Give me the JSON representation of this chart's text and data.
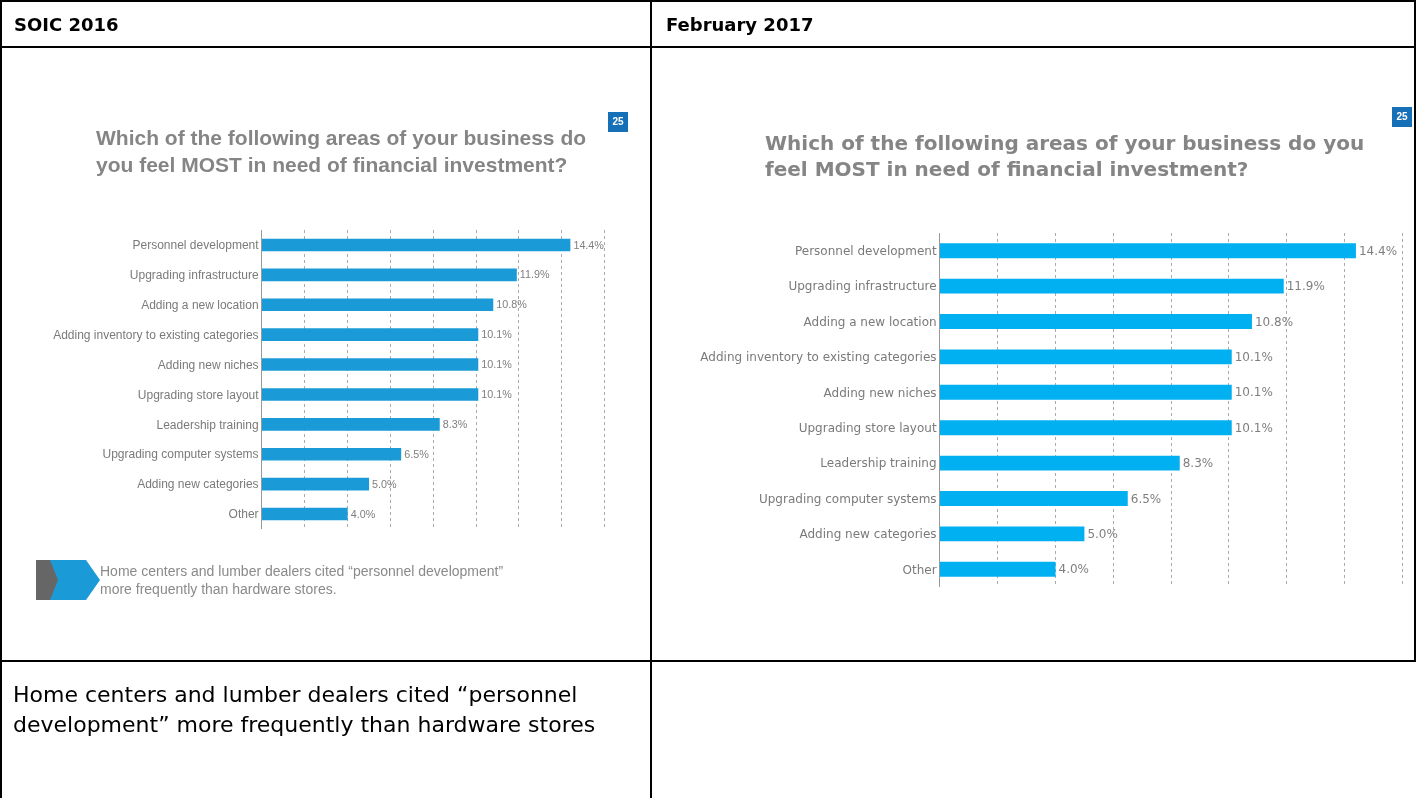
{
  "chart_data": [
    {
      "type": "bar",
      "orientation": "horizontal",
      "title": "Which of the following areas of your business do you feel MOST in need of financial investment?",
      "categories": [
        "Personnel development",
        "Upgrading infrastructure",
        "Adding a new location",
        "Adding inventory to existing categories",
        "Adding new niches",
        "Upgrading store layout",
        "Leadership training",
        "Upgrading computer systems",
        "Adding new categories",
        "Other"
      ],
      "values": [
        14.4,
        11.9,
        10.8,
        10.1,
        10.1,
        10.1,
        8.3,
        6.5,
        5.0,
        4.0
      ],
      "value_labels": [
        "14.4%",
        "11.9%",
        "10.8%",
        "10.1%",
        "10.1%",
        "10.1%",
        "8.3%",
        "6.5%",
        "5.0%",
        "4.0%"
      ],
      "color": "#1a9bd7",
      "xticks": [
        {
          "value": 2,
          "label": null
        },
        {
          "value": 4,
          "label": null
        },
        {
          "value": 6,
          "label": null
        },
        {
          "value": 8,
          "label": null
        },
        {
          "value": 10,
          "label": null
        },
        {
          "value": 12,
          "label": null
        },
        {
          "value": 14,
          "label": null
        },
        {
          "value": 16,
          "label": null
        }
      ],
      "grid": "x",
      "annotations": [
        "SOIC 2016",
        "25",
        "Home centers and lumber dealers cited “personnel development” more frequently than hardware stores.",
        "Home centers and lumber dealers cited “personnel development” more frequently than hardware stores"
      ]
    },
    {
      "type": "bar",
      "orientation": "horizontal",
      "title": "Which of the following areas of your business do you feel MOST in need of financial investment?",
      "categories": [
        "Personnel development",
        "Upgrading infrastructure",
        "Adding a new location",
        "Adding inventory to existing categories",
        "Adding new niches",
        "Upgrading store layout",
        "Leadership training",
        "Upgrading computer systems",
        "Adding new categories",
        "Other"
      ],
      "values": [
        14.4,
        11.9,
        10.8,
        10.1,
        10.1,
        10.1,
        8.3,
        6.5,
        5.0,
        4.0
      ],
      "value_labels": [
        "14.4%",
        "11.9%",
        "10.8%",
        "10.1%",
        "10.1%",
        "10.1%",
        "8.3%",
        "6.5%",
        "5.0%",
        "4.0%"
      ],
      "color": "#00b0f0",
      "xticks": [
        {
          "value": 2,
          "label": null
        },
        {
          "value": 4,
          "label": null
        },
        {
          "value": 6,
          "label": null
        },
        {
          "value": 8,
          "label": null
        },
        {
          "value": 10,
          "label": null
        },
        {
          "value": 12,
          "label": null
        },
        {
          "value": 14,
          "label": null
        },
        {
          "value": 16,
          "label": null
        }
      ],
      "grid": "x",
      "annotations": [
        "February 2017",
        "25"
      ]
    }
  ]
}
